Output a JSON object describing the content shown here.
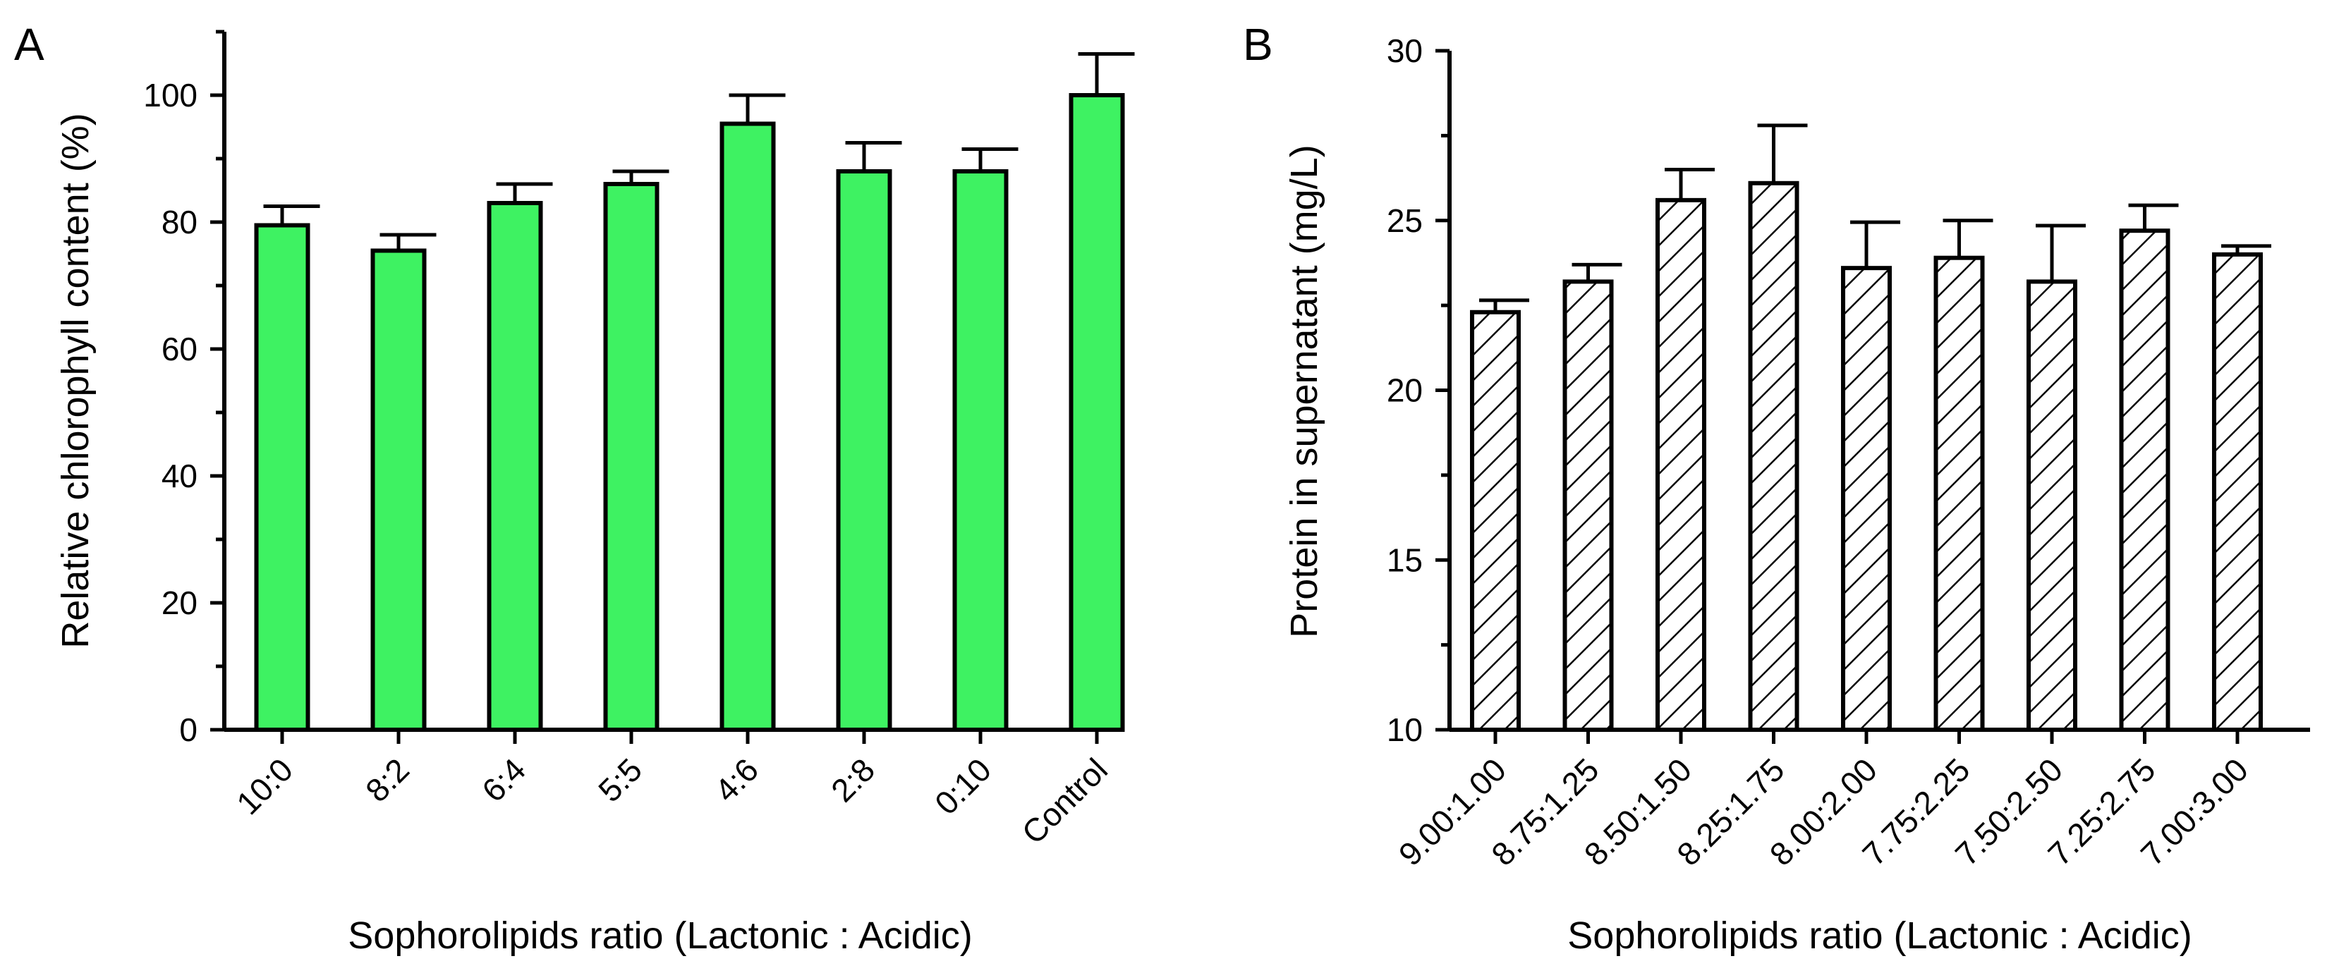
{
  "chart_data": [
    {
      "panel": "A",
      "type": "bar",
      "title": "",
      "xlabel": "Sophorolipids ratio (Lactonic : Acidic)",
      "ylabel": "Relative chlorophyll content (%)",
      "categories": [
        "10:0",
        "8:2",
        "6:4",
        "5:5",
        "4:6",
        "2:8",
        "0:10",
        "Control"
      ],
      "values": [
        79.5,
        75.5,
        83,
        86,
        95.5,
        88,
        88,
        100
      ],
      "errors": [
        3,
        2.5,
        3,
        2,
        4.5,
        4.5,
        3.5,
        6.5
      ],
      "ylim": [
        0,
        110
      ],
      "yticks": [
        0,
        20,
        40,
        60,
        80,
        100
      ],
      "fill": "#3ef262",
      "pattern": "solid"
    },
    {
      "panel": "B",
      "type": "bar",
      "title": "",
      "xlabel": "Sophorolipids ratio (Lactonic : Acidic)",
      "ylabel": "Protein in supernatant (mg/L)",
      "categories": [
        "9.00:1.00",
        "8.75:1.25",
        "8.50:1.50",
        "8.25:1.75",
        "8.00:2.00",
        "7.75:2.25",
        "7.50:2.50",
        "7.25:2.75",
        "7.00:3.00"
      ],
      "values": [
        22.3,
        23.2,
        25.6,
        26.1,
        23.6,
        23.9,
        23.2,
        24.7,
        24.0
      ],
      "errors": [
        0.35,
        0.5,
        0.9,
        1.7,
        1.35,
        1.1,
        1.65,
        0.75,
        0.25
      ],
      "ylim": [
        10,
        30
      ],
      "yticks": [
        10,
        15,
        20,
        25,
        30
      ],
      "fill": "#ffffff",
      "pattern": "hatch"
    }
  ]
}
